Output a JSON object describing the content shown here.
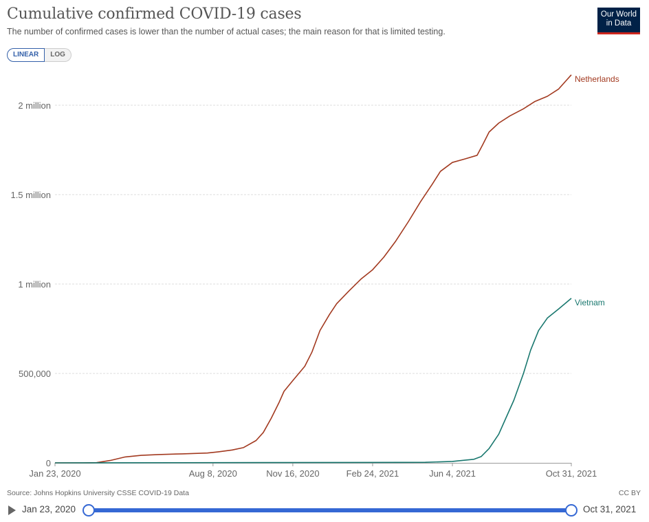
{
  "header": {
    "title": "Cumulative confirmed COVID-19 cases",
    "subtitle": "The number of confirmed cases is lower than the number of actual cases; the main reason for that is limited testing.",
    "logo_line1": "Our World",
    "logo_line2": "in Data"
  },
  "scale_toggle": {
    "linear_label": "LINEAR",
    "log_label": "LOG",
    "selected": "LINEAR"
  },
  "footer": {
    "source": "Source: Johns Hopkins University CSSE COVID-19 Data",
    "license": "CC BY"
  },
  "timeline": {
    "start_label": "Jan 23, 2020",
    "end_label": "Oct 31, 2021",
    "range_selected": [
      0,
      1
    ]
  },
  "chart_data": {
    "type": "line",
    "title": "Cumulative confirmed COVID-19 cases",
    "xlabel": "",
    "ylabel": "",
    "xlim": [
      "2020-01-23",
      "2021-10-31"
    ],
    "ylim": [
      0,
      2200000
    ],
    "grid": "horizontal dashed",
    "legend": "line-end labels",
    "x_ticks": [
      {
        "date": "2020-01-23",
        "label": "Jan 23, 2020"
      },
      {
        "date": "2020-08-08",
        "label": "Aug 8, 2020"
      },
      {
        "date": "2020-11-16",
        "label": "Nov 16, 2020"
      },
      {
        "date": "2021-02-24",
        "label": "Feb 24, 2021"
      },
      {
        "date": "2021-06-04",
        "label": "Jun 4, 2021"
      },
      {
        "date": "2021-10-31",
        "label": "Oct 31, 2021"
      }
    ],
    "y_ticks": [
      {
        "value": 0,
        "label": "0"
      },
      {
        "value": 500000,
        "label": "500,000"
      },
      {
        "value": 1000000,
        "label": "1 million"
      },
      {
        "value": 1500000,
        "label": "1.5 million"
      },
      {
        "value": 2000000,
        "label": "2 million"
      }
    ],
    "series": [
      {
        "name": "Netherlands",
        "color": "#a2391f",
        "points": [
          [
            "2020-01-23",
            0
          ],
          [
            "2020-02-27",
            0
          ],
          [
            "2020-03-15",
            1100
          ],
          [
            "2020-04-01",
            13000
          ],
          [
            "2020-04-20",
            33000
          ],
          [
            "2020-05-10",
            42000
          ],
          [
            "2020-06-01",
            46500
          ],
          [
            "2020-07-01",
            50500
          ],
          [
            "2020-08-01",
            55000
          ],
          [
            "2020-08-15",
            62000
          ],
          [
            "2020-09-01",
            72000
          ],
          [
            "2020-09-15",
            85000
          ],
          [
            "2020-10-01",
            125000
          ],
          [
            "2020-10-10",
            170000
          ],
          [
            "2020-10-20",
            250000
          ],
          [
            "2020-10-30",
            340000
          ],
          [
            "2020-11-05",
            400000
          ],
          [
            "2020-11-16",
            460000
          ],
          [
            "2020-12-01",
            540000
          ],
          [
            "2020-12-10",
            620000
          ],
          [
            "2020-12-20",
            740000
          ],
          [
            "2021-01-01",
            830000
          ],
          [
            "2021-01-10",
            890000
          ],
          [
            "2021-01-25",
            960000
          ],
          [
            "2021-02-10",
            1030000
          ],
          [
            "2021-02-24",
            1080000
          ],
          [
            "2021-03-10",
            1150000
          ],
          [
            "2021-03-25",
            1240000
          ],
          [
            "2021-04-10",
            1350000
          ],
          [
            "2021-04-25",
            1460000
          ],
          [
            "2021-05-10",
            1560000
          ],
          [
            "2021-05-20",
            1630000
          ],
          [
            "2021-06-04",
            1680000
          ],
          [
            "2021-06-20",
            1700000
          ],
          [
            "2021-07-05",
            1720000
          ],
          [
            "2021-07-12",
            1780000
          ],
          [
            "2021-07-20",
            1850000
          ],
          [
            "2021-08-01",
            1900000
          ],
          [
            "2021-08-15",
            1940000
          ],
          [
            "2021-09-01",
            1980000
          ],
          [
            "2021-09-15",
            2020000
          ],
          [
            "2021-10-01",
            2050000
          ],
          [
            "2021-10-15",
            2090000
          ],
          [
            "2021-10-25",
            2140000
          ],
          [
            "2021-10-31",
            2170000
          ]
        ]
      },
      {
        "name": "Vietnam",
        "color": "#18776e",
        "points": [
          [
            "2020-01-23",
            0
          ],
          [
            "2021-04-01",
            2700
          ],
          [
            "2021-05-01",
            3000
          ],
          [
            "2021-06-04",
            8000
          ],
          [
            "2021-06-20",
            15000
          ],
          [
            "2021-07-01",
            20000
          ],
          [
            "2021-07-10",
            35000
          ],
          [
            "2021-07-20",
            80000
          ],
          [
            "2021-08-01",
            160000
          ],
          [
            "2021-08-10",
            250000
          ],
          [
            "2021-08-20",
            350000
          ],
          [
            "2021-09-01",
            500000
          ],
          [
            "2021-09-10",
            630000
          ],
          [
            "2021-09-20",
            740000
          ],
          [
            "2021-10-01",
            810000
          ],
          [
            "2021-10-15",
            860000
          ],
          [
            "2021-10-31",
            920000
          ]
        ]
      }
    ]
  }
}
